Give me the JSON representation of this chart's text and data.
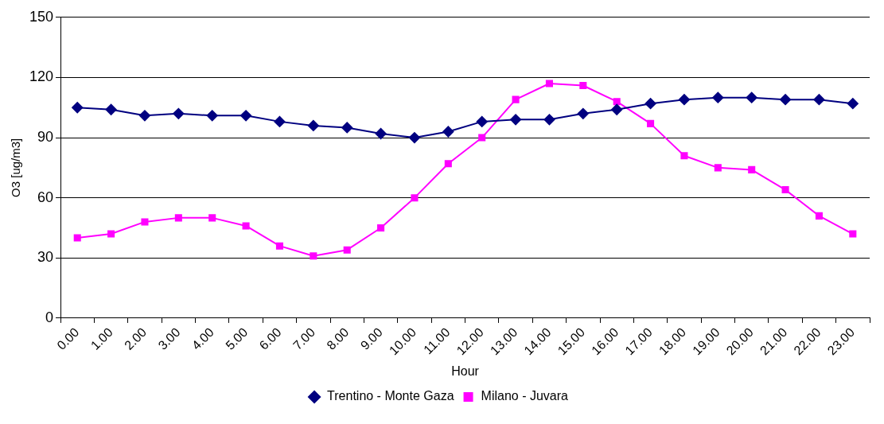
{
  "chart_data": {
    "type": "line",
    "xlabel": "Hour",
    "ylabel": "O3 [ug/m3]",
    "categories": [
      "0.00",
      "1.00",
      "2.00",
      "3.00",
      "4.00",
      "5.00",
      "6.00",
      "7.00",
      "8.00",
      "9.00",
      "10.00",
      "11.00",
      "12.00",
      "13.00",
      "14.00",
      "15.00",
      "16.00",
      "17.00",
      "18.00",
      "19.00",
      "20.00",
      "21.00",
      "22.00",
      "23.00"
    ],
    "series": [
      {
        "name": "Trentino - Monte Gaza",
        "color": "#000080",
        "marker": "diamond",
        "values": [
          105,
          104,
          101,
          102,
          101,
          101,
          98,
          96,
          95,
          92,
          90,
          93,
          98,
          99,
          99,
          102,
          104,
          107,
          109,
          110,
          110,
          109,
          109,
          107
        ]
      },
      {
        "name": "Milano - Juvara",
        "color": "#ff00ff",
        "marker": "square",
        "values": [
          40,
          42,
          48,
          50,
          50,
          46,
          36,
          31,
          34,
          45,
          60,
          77,
          90,
          109,
          117,
          116,
          108,
          97,
          81,
          75,
          74,
          64,
          51,
          42
        ]
      }
    ],
    "ylim": [
      0,
      150
    ],
    "yticks": [
      0,
      30,
      60,
      90,
      120,
      150
    ],
    "grid": "y",
    "legend": "bottom"
  }
}
